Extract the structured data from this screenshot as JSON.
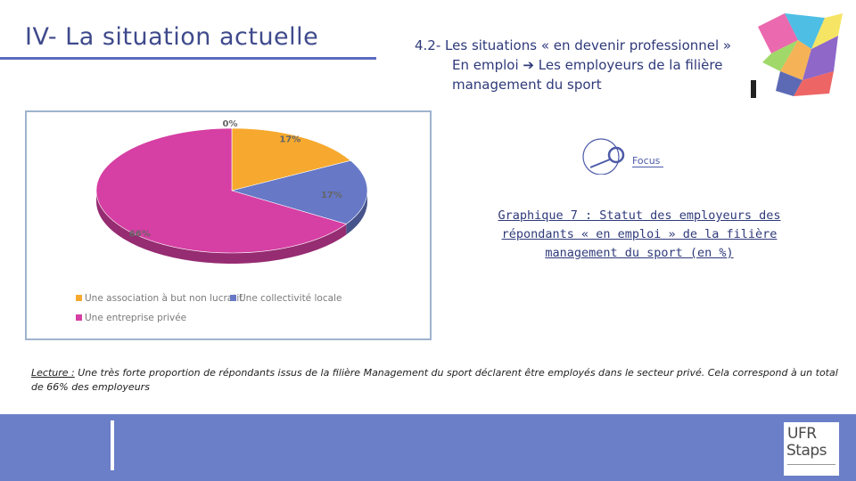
{
  "header": {
    "title": "IV- La situation actuelle",
    "subtitle_line1": "4.2- Les situations « en devenir professionnel »",
    "subtitle_line2_a": "En emploi",
    "subtitle_arrow": "➔",
    "subtitle_line2_b": "Les employeurs de la filière",
    "subtitle_line3": "management du sport"
  },
  "focus": {
    "label": "Focus"
  },
  "graph_title": {
    "line1": "Graphique 7 : Statut des employeurs des",
    "line2": "répondants « en emploi » de la filière",
    "line3": "management du sport (en %)"
  },
  "reading": {
    "lead": "Lecture :",
    "text": " Une très forte proportion de répondants issus de la filière Management du sport déclarent être employés dans le secteur privé. Cela correspond à un total de 66% des employeurs"
  },
  "logo": {
    "line1": "UFR",
    "line2": "Staps"
  },
  "chart_data": {
    "type": "pie",
    "categories": [
      "Une association à but non lucratif",
      "Une collectivité locale",
      "Une entreprise privée",
      ""
    ],
    "values": [
      17,
      17,
      66,
      0
    ],
    "labels": [
      "17%",
      "17%",
      "66%",
      "0%"
    ],
    "colors": [
      "#f6a92e",
      "#6678c6",
      "#d63fa3",
      "#6b6b6b"
    ],
    "legend_position": "bottom-left"
  }
}
